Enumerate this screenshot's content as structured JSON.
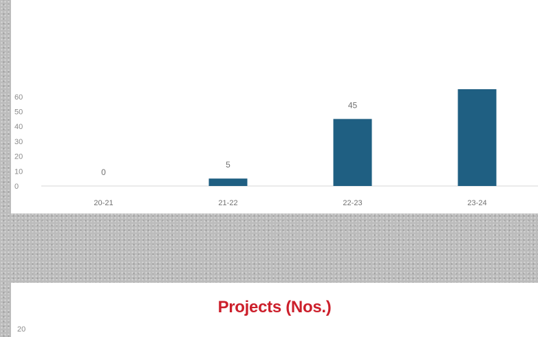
{
  "chart_data": [
    {
      "type": "bar",
      "categories": [
        "20-21",
        "21-22",
        "22-23",
        "23-24"
      ],
      "values": [
        0,
        5,
        45,
        65
      ],
      "data_labels": [
        "0",
        "5",
        "45",
        ""
      ],
      "yticks": [
        "0",
        "10",
        "20",
        "30",
        "40",
        "50",
        "60"
      ],
      "ylim": [
        0,
        60
      ],
      "bar_color": "#1f5f82",
      "grid": false,
      "title": "",
      "xlabel": "",
      "ylabel": ""
    },
    {
      "type": "bar",
      "title": "Projects (Nos.)",
      "title_color": "#cc1f2b",
      "yticks": [
        "20"
      ]
    }
  ]
}
